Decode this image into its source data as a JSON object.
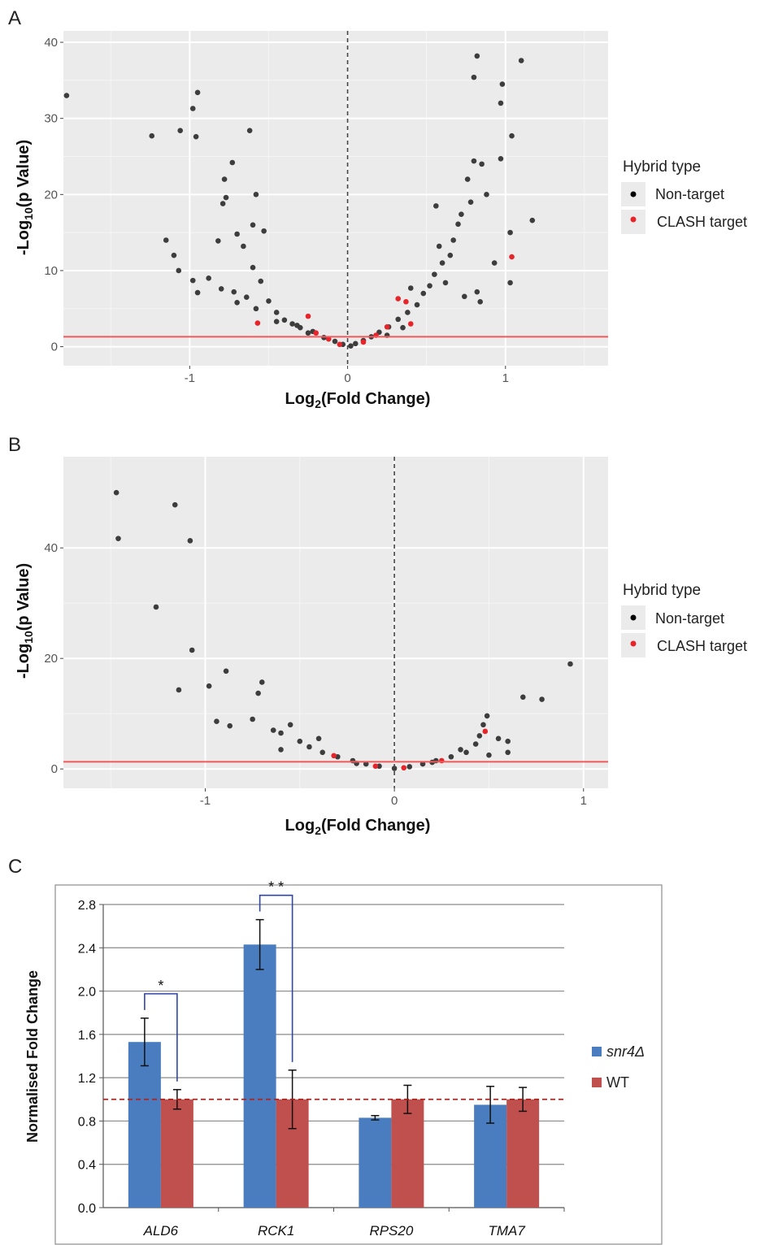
{
  "chart_data": [
    {
      "type": "scatter",
      "panel_label": "A",
      "xlabel": "Log2(Fold Change)",
      "ylabel": "-Log10(p Value)",
      "xlim": [
        -1.8,
        1.65
      ],
      "ylim": [
        -2.5,
        41.5
      ],
      "xticks": [
        -1,
        0,
        1
      ],
      "yticks": [
        0,
        10,
        20,
        30,
        40
      ],
      "grid": true,
      "vline_x": 0,
      "hline_y": 1.3,
      "legend": {
        "title": "Hybrid type",
        "entries": [
          "Non-target",
          "CLASH target"
        ],
        "colors": [
          "#000000",
          "#e8242b"
        ],
        "placement": "right"
      },
      "series": [
        {
          "name": "Non-target",
          "points": [
            [
              -1.78,
              33.0
            ],
            [
              -1.24,
              27.7
            ],
            [
              -1.06,
              28.4
            ],
            [
              -0.98,
              31.3
            ],
            [
              -0.95,
              33.4
            ],
            [
              -0.96,
              27.6
            ],
            [
              -0.62,
              28.4
            ],
            [
              -0.73,
              24.2
            ],
            [
              -0.58,
              20.0
            ],
            [
              -0.78,
              22.0
            ],
            [
              -0.77,
              19.6
            ],
            [
              -0.6,
              16.0
            ],
            [
              -0.53,
              15.2
            ],
            [
              -0.79,
              18.8
            ],
            [
              -0.7,
              14.8
            ],
            [
              -1.15,
              14.0
            ],
            [
              -1.1,
              12.0
            ],
            [
              -0.82,
              13.9
            ],
            [
              -0.66,
              13.2
            ],
            [
              -1.07,
              10.0
            ],
            [
              -0.98,
              8.7
            ],
            [
              -0.88,
              9.0
            ],
            [
              -0.95,
              7.1
            ],
            [
              -0.8,
              7.6
            ],
            [
              -0.72,
              7.2
            ],
            [
              -0.7,
              5.8
            ],
            [
              -0.64,
              6.5
            ],
            [
              -0.58,
              5.0
            ],
            [
              -0.5,
              6.0
            ],
            [
              -0.45,
              4.5
            ],
            [
              -0.4,
              3.5
            ],
            [
              -0.35,
              3.0
            ],
            [
              -0.3,
              2.5
            ],
            [
              -0.22,
              2.0
            ],
            [
              -0.15,
              1.2
            ],
            [
              -0.08,
              0.7
            ],
            [
              -0.03,
              0.3
            ],
            [
              0.02,
              0.1
            ],
            [
              0.05,
              0.4
            ],
            [
              0.1,
              0.8
            ],
            [
              0.15,
              1.3
            ],
            [
              0.2,
              1.9
            ],
            [
              0.26,
              2.6
            ],
            [
              0.32,
              3.6
            ],
            [
              0.38,
              4.5
            ],
            [
              0.44,
              5.5
            ],
            [
              0.48,
              7.0
            ],
            [
              0.52,
              8.0
            ],
            [
              0.55,
              9.5
            ],
            [
              0.6,
              11.0
            ],
            [
              0.58,
              13.2
            ],
            [
              0.67,
              14.0
            ],
            [
              0.7,
              16.1
            ],
            [
              0.72,
              17.4
            ],
            [
              0.78,
              19.0
            ],
            [
              0.76,
              22.0
            ],
            [
              0.8,
              24.4
            ],
            [
              0.85,
              24.0
            ],
            [
              0.88,
              20.0
            ],
            [
              0.65,
              12.0
            ],
            [
              0.56,
              18.5
            ],
            [
              0.62,
              8.4
            ],
            [
              0.74,
              6.6
            ],
            [
              0.82,
              7.2
            ],
            [
              0.8,
              35.4
            ],
            [
              0.82,
              38.2
            ],
            [
              0.97,
              32.0
            ],
            [
              0.98,
              34.5
            ],
            [
              1.1,
              37.6
            ],
            [
              1.04,
              27.7
            ],
            [
              0.97,
              24.7
            ],
            [
              1.03,
              15.0
            ],
            [
              1.17,
              16.6
            ],
            [
              1.03,
              8.4
            ],
            [
              0.93,
              11.0
            ],
            [
              0.84,
              5.9
            ],
            [
              0.4,
              7.7
            ],
            [
              0.35,
              2.5
            ],
            [
              0.25,
              1.5
            ],
            [
              -0.25,
              1.8
            ],
            [
              -0.32,
              2.8
            ],
            [
              -0.55,
              8.6
            ],
            [
              -0.6,
              10.4
            ],
            [
              -0.45,
              3.3
            ]
          ]
        },
        {
          "name": "CLASH target",
          "points": [
            [
              1.04,
              11.8
            ],
            [
              -0.57,
              3.1
            ],
            [
              -0.25,
              4.0
            ],
            [
              0.32,
              6.3
            ],
            [
              0.37,
              5.9
            ],
            [
              0.25,
              2.6
            ],
            [
              0.18,
              1.5
            ],
            [
              -0.2,
              1.8
            ],
            [
              -0.12,
              1.0
            ],
            [
              0.1,
              0.6
            ],
            [
              -0.05,
              0.3
            ],
            [
              0.4,
              3.0
            ]
          ]
        }
      ]
    },
    {
      "type": "scatter",
      "panel_label": "B",
      "xlabel": "Log2(Fold Change)",
      "ylabel": "-Log10(p Value)",
      "xlim": [
        -1.75,
        1.13
      ],
      "ylim": [
        -3.5,
        56.5
      ],
      "xticks": [
        -1,
        0,
        1
      ],
      "yticks": [
        0,
        20,
        40
      ],
      "grid": true,
      "vline_x": 0,
      "hline_y": 1.3,
      "legend": {
        "title": "Hybrid type",
        "entries": [
          "Non-target",
          "CLASH target"
        ],
        "colors": [
          "#000000",
          "#e8242b"
        ],
        "placement": "right"
      },
      "series": [
        {
          "name": "Non-target",
          "points": [
            [
              -1.47,
              50.0
            ],
            [
              -1.46,
              41.7
            ],
            [
              -1.16,
              47.8
            ],
            [
              -1.08,
              41.3
            ],
            [
              -1.26,
              29.3
            ],
            [
              -1.07,
              21.5
            ],
            [
              -1.14,
              14.3
            ],
            [
              -0.98,
              15.0
            ],
            [
              -0.89,
              17.7
            ],
            [
              -0.94,
              8.6
            ],
            [
              -0.87,
              7.8
            ],
            [
              -0.7,
              15.7
            ],
            [
              -0.72,
              13.7
            ],
            [
              -0.75,
              9.0
            ],
            [
              -0.64,
              7.0
            ],
            [
              -0.6,
              6.5
            ],
            [
              -0.55,
              8.0
            ],
            [
              -0.5,
              5.0
            ],
            [
              -0.45,
              4.0
            ],
            [
              -0.38,
              3.0
            ],
            [
              -0.3,
              2.2
            ],
            [
              -0.22,
              1.5
            ],
            [
              -0.15,
              0.9
            ],
            [
              -0.08,
              0.5
            ],
            [
              0.0,
              0.1
            ],
            [
              0.08,
              0.4
            ],
            [
              0.15,
              0.9
            ],
            [
              0.22,
              1.5
            ],
            [
              0.3,
              2.2
            ],
            [
              0.38,
              3.0
            ],
            [
              0.43,
              4.5
            ],
            [
              0.45,
              6.0
            ],
            [
              0.47,
              8.0
            ],
            [
              0.49,
              9.6
            ],
            [
              0.55,
              5.5
            ],
            [
              0.6,
              5.0
            ],
            [
              0.5,
              2.5
            ],
            [
              0.68,
              13.0
            ],
            [
              0.78,
              12.6
            ],
            [
              0.93,
              19.0
            ],
            [
              -0.6,
              3.5
            ],
            [
              -0.2,
              1.0
            ],
            [
              0.2,
              1.2
            ],
            [
              0.35,
              3.5
            ],
            [
              0.6,
              3.0
            ],
            [
              -0.4,
              5.5
            ]
          ]
        },
        {
          "name": "CLASH target",
          "points": [
            [
              0.48,
              6.8
            ],
            [
              -0.32,
              2.4
            ],
            [
              0.25,
              1.5
            ],
            [
              -0.1,
              0.5
            ],
            [
              0.05,
              0.2
            ]
          ]
        }
      ]
    },
    {
      "type": "bar",
      "panel_label": "C",
      "ylabel": "Normalised Fold Change",
      "ylim": [
        0,
        2.8
      ],
      "yticks": [
        "0.0",
        "0.4",
        "0.8",
        "1.2",
        "1.6",
        "2.0",
        "2.4",
        "2.8"
      ],
      "categories": [
        "ALD6",
        "RCK1",
        "RPS20",
        "TMA7"
      ],
      "series": [
        {
          "name": "snr4Δ",
          "color": "#4a7dbf",
          "values": [
            1.53,
            2.43,
            0.83,
            0.95
          ],
          "errors": [
            0.22,
            0.23,
            0.02,
            0.17
          ]
        },
        {
          "name": "WT",
          "color": "#c0504d",
          "values": [
            1.0,
            1.0,
            1.0,
            1.0
          ],
          "errors": [
            0.09,
            0.27,
            0.13,
            0.11
          ]
        }
      ],
      "reference_line": 1.0,
      "significance": [
        {
          "category": "ALD6",
          "label": "*"
        },
        {
          "category": "RCK1",
          "label": "* *"
        }
      ],
      "legend_placement": "right",
      "grid": true
    }
  ]
}
